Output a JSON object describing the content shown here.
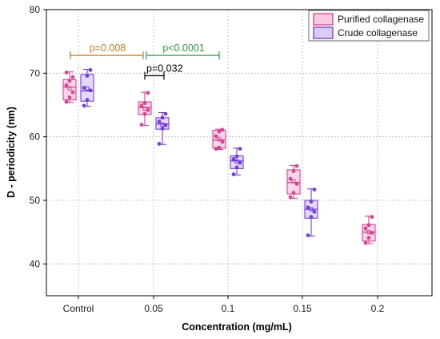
{
  "chart_data": {
    "type": "box",
    "xlabel": "Concentration (mg/mL)",
    "ylabel": "D - periodicity (nm)",
    "categories": [
      "Control",
      "0.05",
      "0.1",
      "0.15",
      "0.2"
    ],
    "ylim": [
      35,
      80
    ],
    "yticks": [
      40,
      50,
      60,
      70,
      80
    ],
    "grid": true,
    "legend_position": "top-right",
    "series": [
      {
        "name": "Purified collagenase",
        "color": "#d9328a",
        "fill": "#f7c9df",
        "boxes": [
          {
            "category": "Control",
            "min": 65.4,
            "q1": 65.8,
            "median": 67.8,
            "q3": 69.0,
            "max": 70.2,
            "mean": 67.6,
            "points": [
              65.5,
              66.2,
              67.0,
              68.1,
              68.8,
              69.4,
              70.1
            ]
          },
          {
            "category": "0.05",
            "min": 61.8,
            "q1": 63.5,
            "median": 64.6,
            "q3": 65.5,
            "max": 67.0,
            "mean": 64.4,
            "points": [
              61.9,
              63.6,
              64.2,
              64.9,
              65.3,
              66.9
            ]
          },
          {
            "category": "0.1",
            "min": 58.0,
            "q1": 58.2,
            "median": 59.5,
            "q3": 61.0,
            "max": 61.2,
            "mean": 59.6,
            "points": [
              58.1,
              58.3,
              59.2,
              60.1,
              60.8,
              61.1
            ]
          },
          {
            "category": "0.15",
            "min": 50.3,
            "q1": 51.0,
            "median": 52.8,
            "q3": 54.8,
            "max": 55.5,
            "mean": 53.0,
            "points": [
              50.5,
              51.2,
              52.6,
              53.4,
              54.6,
              55.4
            ]
          },
          {
            "category": "0.2",
            "min": 43.2,
            "q1": 43.6,
            "median": 45.0,
            "q3": 46.2,
            "max": 47.5,
            "mean": 45.0,
            "points": [
              43.3,
              44.1,
              44.9,
              45.6,
              46.1,
              47.4
            ]
          }
        ]
      },
      {
        "name": "Crude collagenase",
        "color": "#6a2de0",
        "fill": "#d9cdf7",
        "boxes": [
          {
            "category": "Control",
            "min": 64.8,
            "q1": 65.6,
            "median": 67.2,
            "q3": 69.8,
            "max": 70.6,
            "mean": 67.6,
            "points": [
              64.9,
              65.8,
              67.3,
              67.7,
              69.6,
              70.5
            ]
          },
          {
            "category": "0.05",
            "min": 58.8,
            "q1": 61.2,
            "median": 62.0,
            "q3": 63.0,
            "max": 63.8,
            "mean": 61.9,
            "points": [
              58.9,
              61.3,
              61.8,
              62.4,
              63.0,
              63.6
            ]
          },
          {
            "category": "0.1",
            "min": 54.0,
            "q1": 55.0,
            "median": 56.2,
            "q3": 57.0,
            "max": 58.2,
            "mean": 56.1,
            "points": [
              54.1,
              55.2,
              55.9,
              56.5,
              56.9,
              58.1
            ]
          },
          {
            "category": "0.15",
            "min": 44.4,
            "q1": 47.2,
            "median": 48.6,
            "q3": 50.0,
            "max": 51.8,
            "mean": 48.6,
            "points": [
              44.5,
              47.4,
              48.2,
              48.9,
              49.8,
              51.7
            ]
          }
        ]
      }
    ],
    "annotations": [
      {
        "text": "p=0.008",
        "color": "#d07a1a",
        "from": "Control",
        "to": "0.05",
        "y": 72.8
      },
      {
        "text": "p<0.0001",
        "color": "#2aa043",
        "from": "0.05",
        "to": "0.1",
        "y": 72.8
      },
      {
        "text": "p=0.032",
        "color": "#000000",
        "from": "0.05-purified",
        "to": "0.05-crude",
        "y": 69.6
      }
    ]
  }
}
